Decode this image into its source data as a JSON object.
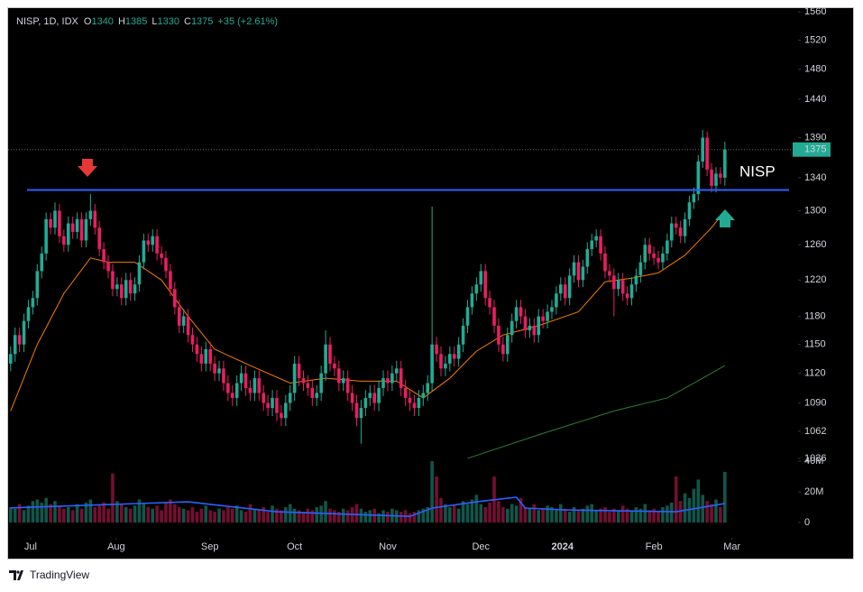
{
  "chart_data": {
    "type": "candlestick",
    "symbol": "NISP, 1D, IDX",
    "ohlc_letters": [
      "O",
      "H",
      "L",
      "C"
    ],
    "change": "+35 (+2.61%)",
    "annotation": "NISP",
    "watermark": "TradingView",
    "log_scale": true,
    "grid": false,
    "up_color": "#22ab94",
    "down_color": "#e91e63",
    "xlim": [
      -2.4,
      177.5
    ],
    "xticks": [
      {
        "value": 4.5,
        "label": "Jul"
      },
      {
        "value": 23.8,
        "label": "Aug"
      },
      {
        "value": 44.9,
        "label": "Sep"
      },
      {
        "value": 64,
        "label": "Oct"
      },
      {
        "value": 85,
        "label": "Nov"
      },
      {
        "value": 106,
        "label": "Dec"
      },
      {
        "value": 124.4,
        "label": "2024"
      },
      {
        "value": 145,
        "label": "Feb"
      },
      {
        "value": 162.6,
        "label": "Mar"
      }
    ],
    "ylim": [
      964,
      1564
    ],
    "yticks": [
      1036,
      1062,
      1090,
      1120,
      1150,
      1180,
      1220,
      1260,
      1300,
      1340,
      1390,
      1440,
      1480,
      1520,
      1560
    ],
    "open": [
      1130,
      1140,
      1160,
      1150,
      1175,
      1190,
      1200,
      1230,
      1250,
      1290,
      1280,
      1300,
      1270,
      1260,
      1285,
      1275,
      1290,
      1265,
      1290,
      1300,
      1280,
      1255,
      1240,
      1230,
      1210,
      1215,
      1200,
      1220,
      1205,
      1215,
      1240,
      1265,
      1260,
      1270,
      1250,
      1245,
      1230,
      1210,
      1190,
      1170,
      1180,
      1160,
      1150,
      1140,
      1130,
      1145,
      1130,
      1120,
      1125,
      1110,
      1100,
      1095,
      1110,
      1120,
      1105,
      1100,
      1115,
      1100,
      1090,
      1085,
      1095,
      1080,
      1075,
      1090,
      1100,
      1130,
      1115,
      1110,
      1105,
      1095,
      1100,
      1120,
      1150,
      1130,
      1125,
      1110,
      1115,
      1100,
      1090,
      1075,
      1085,
      1095,
      1100,
      1090,
      1105,
      1115,
      1110,
      1120,
      1125,
      1105,
      1095,
      1090,
      1085,
      1095,
      1100,
      1110,
      1150,
      1140,
      1125,
      1130,
      1140,
      1135,
      1150,
      1170,
      1190,
      1205,
      1215,
      1230,
      1200,
      1190,
      1170,
      1150,
      1140,
      1160,
      1175,
      1190,
      1180,
      1165,
      1170,
      1160,
      1180,
      1175,
      1185,
      1190,
      1205,
      1215,
      1200,
      1225,
      1240,
      1220,
      1235,
      1255,
      1265,
      1270,
      1250,
      1230,
      1225,
      1210,
      1220,
      1205,
      1200,
      1215,
      1225,
      1240,
      1260,
      1250,
      1245,
      1240,
      1250,
      1265,
      1285,
      1280,
      1270,
      1290,
      1310,
      1320,
      1360,
      1390,
      1350,
      1330,
      1345,
      1340
    ],
    "high": [
      1148,
      1168,
      1168,
      1183,
      1198,
      1208,
      1238,
      1258,
      1298,
      1298,
      1310,
      1308,
      1278,
      1293,
      1293,
      1298,
      1298,
      1298,
      1320,
      1308,
      1288,
      1263,
      1248,
      1238,
      1223,
      1223,
      1228,
      1228,
      1223,
      1248,
      1273,
      1273,
      1278,
      1278,
      1258,
      1253,
      1238,
      1218,
      1198,
      1188,
      1188,
      1168,
      1158,
      1148,
      1153,
      1153,
      1138,
      1133,
      1133,
      1118,
      1108,
      1118,
      1128,
      1128,
      1113,
      1123,
      1123,
      1108,
      1098,
      1103,
      1103,
      1088,
      1098,
      1108,
      1138,
      1138,
      1123,
      1118,
      1113,
      1108,
      1128,
      1165,
      1158,
      1138,
      1133,
      1123,
      1123,
      1108,
      1098,
      1093,
      1103,
      1108,
      1108,
      1113,
      1123,
      1123,
      1128,
      1133,
      1133,
      1113,
      1103,
      1098,
      1103,
      1108,
      1118,
      1305,
      1158,
      1148,
      1138,
      1148,
      1148,
      1158,
      1178,
      1198,
      1213,
      1223,
      1238,
      1238,
      1208,
      1198,
      1178,
      1158,
      1168,
      1183,
      1198,
      1198,
      1188,
      1178,
      1178,
      1188,
      1188,
      1193,
      1198,
      1213,
      1223,
      1223,
      1233,
      1248,
      1248,
      1243,
      1263,
      1273,
      1278,
      1278,
      1258,
      1238,
      1233,
      1228,
      1228,
      1213,
      1223,
      1233,
      1248,
      1268,
      1268,
      1258,
      1253,
      1258,
      1273,
      1293,
      1293,
      1288,
      1298,
      1318,
      1328,
      1368,
      1400,
      1398,
      1358,
      1353,
      1353,
      1385
    ],
    "low": [
      1122,
      1132,
      1142,
      1142,
      1167,
      1182,
      1192,
      1222,
      1242,
      1272,
      1272,
      1262,
      1252,
      1252,
      1267,
      1267,
      1257,
      1257,
      1282,
      1272,
      1247,
      1232,
      1222,
      1202,
      1202,
      1192,
      1192,
      1197,
      1197,
      1207,
      1232,
      1252,
      1252,
      1242,
      1237,
      1222,
      1202,
      1182,
      1162,
      1162,
      1152,
      1142,
      1132,
      1122,
      1122,
      1122,
      1112,
      1112,
      1102,
      1092,
      1087,
      1087,
      1102,
      1097,
      1092,
      1092,
      1092,
      1082,
      1077,
      1077,
      1072,
      1067,
      1067,
      1082,
      1092,
      1107,
      1102,
      1097,
      1087,
      1087,
      1092,
      1112,
      1122,
      1117,
      1102,
      1102,
      1092,
      1082,
      1067,
      1050,
      1077,
      1087,
      1082,
      1082,
      1097,
      1102,
      1102,
      1112,
      1097,
      1087,
      1082,
      1077,
      1077,
      1087,
      1092,
      1102,
      1132,
      1117,
      1117,
      1122,
      1127,
      1127,
      1142,
      1162,
      1182,
      1197,
      1207,
      1192,
      1182,
      1162,
      1142,
      1132,
      1132,
      1152,
      1167,
      1172,
      1157,
      1157,
      1152,
      1152,
      1167,
      1167,
      1177,
      1182,
      1197,
      1192,
      1192,
      1217,
      1212,
      1212,
      1227,
      1247,
      1257,
      1242,
      1222,
      1217,
      1180,
      1202,
      1197,
      1192,
      1192,
      1207,
      1217,
      1232,
      1242,
      1237,
      1232,
      1232,
      1242,
      1257,
      1272,
      1262,
      1262,
      1282,
      1302,
      1312,
      1352,
      1342,
      1322,
      1322,
      1332,
      1330
    ],
    "close": [
      1140,
      1160,
      1150,
      1175,
      1190,
      1200,
      1230,
      1250,
      1290,
      1280,
      1300,
      1270,
      1260,
      1285,
      1275,
      1290,
      1265,
      1290,
      1300,
      1280,
      1255,
      1240,
      1230,
      1210,
      1215,
      1200,
      1220,
      1205,
      1215,
      1240,
      1265,
      1260,
      1270,
      1250,
      1245,
      1230,
      1210,
      1190,
      1170,
      1180,
      1160,
      1150,
      1140,
      1130,
      1145,
      1130,
      1120,
      1125,
      1110,
      1100,
      1095,
      1110,
      1120,
      1105,
      1100,
      1115,
      1100,
      1090,
      1085,
      1095,
      1080,
      1075,
      1090,
      1100,
      1130,
      1115,
      1110,
      1105,
      1095,
      1100,
      1120,
      1150,
      1130,
      1125,
      1110,
      1115,
      1100,
      1090,
      1075,
      1085,
      1095,
      1100,
      1090,
      1105,
      1115,
      1110,
      1120,
      1125,
      1105,
      1095,
      1090,
      1085,
      1095,
      1100,
      1110,
      1150,
      1140,
      1125,
      1130,
      1140,
      1135,
      1150,
      1170,
      1190,
      1205,
      1215,
      1230,
      1200,
      1190,
      1170,
      1150,
      1140,
      1160,
      1175,
      1190,
      1180,
      1165,
      1170,
      1160,
      1180,
      1175,
      1185,
      1190,
      1205,
      1215,
      1200,
      1225,
      1240,
      1220,
      1235,
      1255,
      1265,
      1270,
      1250,
      1230,
      1225,
      1210,
      1220,
      1205,
      1200,
      1215,
      1225,
      1240,
      1260,
      1250,
      1245,
      1240,
      1250,
      1265,
      1285,
      1280,
      1270,
      1290,
      1310,
      1320,
      1360,
      1390,
      1350,
      1330,
      1345,
      1340,
      1375
    ],
    "level": {
      "value": 1325,
      "color": "#2962ff"
    },
    "moving_averages": [
      {
        "color": "#f57c00",
        "x": [
          0,
          6,
          12,
          18,
          22,
          28,
          34,
          40,
          46,
          54,
          63,
          71,
          79,
          87,
          93,
          99,
          105,
          111,
          119,
          128,
          134,
          140,
          146,
          152,
          158,
          161
        ],
        "values": [
          1082,
          1150,
          1205,
          1245,
          1240,
          1240,
          1220,
          1180,
          1145,
          1128,
          1110,
          1115,
          1112,
          1112,
          1095,
          1115,
          1143,
          1160,
          1170,
          1185,
          1218,
          1222,
          1228,
          1248,
          1280,
          1300
        ]
      },
      {
        "color": "#2e7d32",
        "x": [
          103,
          120,
          136,
          148,
          156,
          161
        ],
        "values": [
          1036,
          1060,
          1082,
          1095,
          1115,
          1128
        ]
      }
    ],
    "volume": {
      "ylim": [
        0,
        40000000
      ],
      "yticks": [
        0,
        {
          "value": 20000000,
          "label": "20M"
        },
        {
          "value": 40000000,
          "label": "40M"
        }
      ],
      "values": [
        10000000.0,
        9000000.0,
        12000000.0,
        8000000.0,
        11000000.0,
        14000000.0,
        15000000.0,
        13000000.0,
        16000000.0,
        12000000.0,
        14000000.0,
        11000000.0,
        9000000.0,
        10000000.0,
        8000000.0,
        12000000.0,
        9000000.0,
        13000000.0,
        15000000.0,
        10000000.0,
        11000000.0,
        13000000.0,
        9000000.0,
        32000000.0,
        14000000.0,
        12000000.0,
        10000000.0,
        9000000.0,
        11000000.0,
        15000000.0,
        12000000.0,
        10000000.0,
        9000000.0,
        11000000.0,
        8000000.0,
        13000000.0,
        15000000.0,
        12000000.0,
        10000000.0,
        9000000.0,
        8000000.0,
        10000000.0,
        7000000.0,
        9000000.0,
        11000000.0,
        8000000.0,
        7000000.0,
        9000000.0,
        8000000.0,
        10000000.0,
        9000000.0,
        11000000.0,
        8000000.0,
        7000000.0,
        12000000.0,
        9000000.0,
        8000000.0,
        10000000.0,
        7000000.0,
        11000000.0,
        9000000.0,
        8000000.0,
        10000000.0,
        12000000.0,
        9000000.0,
        8000000.0,
        7000000.0,
        9000000.0,
        8000000.0,
        10000000.0,
        11000000.0,
        14000000.0,
        9000000.0,
        8000000.0,
        7000000.0,
        9000000.0,
        8000000.0,
        10000000.0,
        12000000.0,
        9000000.0,
        7000000.0,
        8000000.0,
        9000000.0,
        6000000.0,
        8000000.0,
        7000000.0,
        9000000.0,
        8000000.0,
        7000000.0,
        8000000.0,
        6000000.0,
        7000000.0,
        8000000.0,
        9000000.0,
        10000000.0,
        40000000.0,
        30000000.0,
        16000000.0,
        12000000.0,
        10000000.0,
        11000000.0,
        9000000.0,
        14000000.0,
        12000000.0,
        15000000.0,
        18000000.0,
        12000000.0,
        10000000.0,
        13000000.0,
        30000000.0,
        14000000.0,
        10000000.0,
        9000000.0,
        12000000.0,
        11000000.0,
        16000000.0,
        10000000.0,
        9000000.0,
        12000000.0,
        8000000.0,
        9000000.0,
        11000000.0,
        10000000.0,
        8000000.0,
        12000000.0,
        9000000.0,
        7000000.0,
        10000000.0,
        8000000.0,
        9000000.0,
        11000000.0,
        12000000.0,
        8000000.0,
        9000000.0,
        10000000.0,
        7000000.0,
        9000000.0,
        8000000.0,
        11000000.0,
        9000000.0,
        8000000.0,
        10000000.0,
        9000000.0,
        12000000.0,
        8000000.0,
        9000000.0,
        7000000.0,
        10000000.0,
        11000000.0,
        13000000.0,
        30000000.0,
        14000000.0,
        19000000.0,
        16000000.0,
        22000000.0,
        28000000.0,
        18000000.0,
        14000000.0,
        12000000.0,
        15000000.0,
        10000000.0,
        33000000.0
      ],
      "ma": {
        "color": "#2962ff",
        "x": [
          0,
          40,
          60,
          90,
          95,
          105,
          114,
          116,
          125,
          150,
          161
        ],
        "values": [
          9500000.0,
          13500000.0,
          7000000.0,
          4000000.0,
          9400000.0,
          13500000.0,
          16500000.0,
          9400000.0,
          8200000.0,
          7000000.0,
          12400000.0
        ]
      }
    }
  }
}
